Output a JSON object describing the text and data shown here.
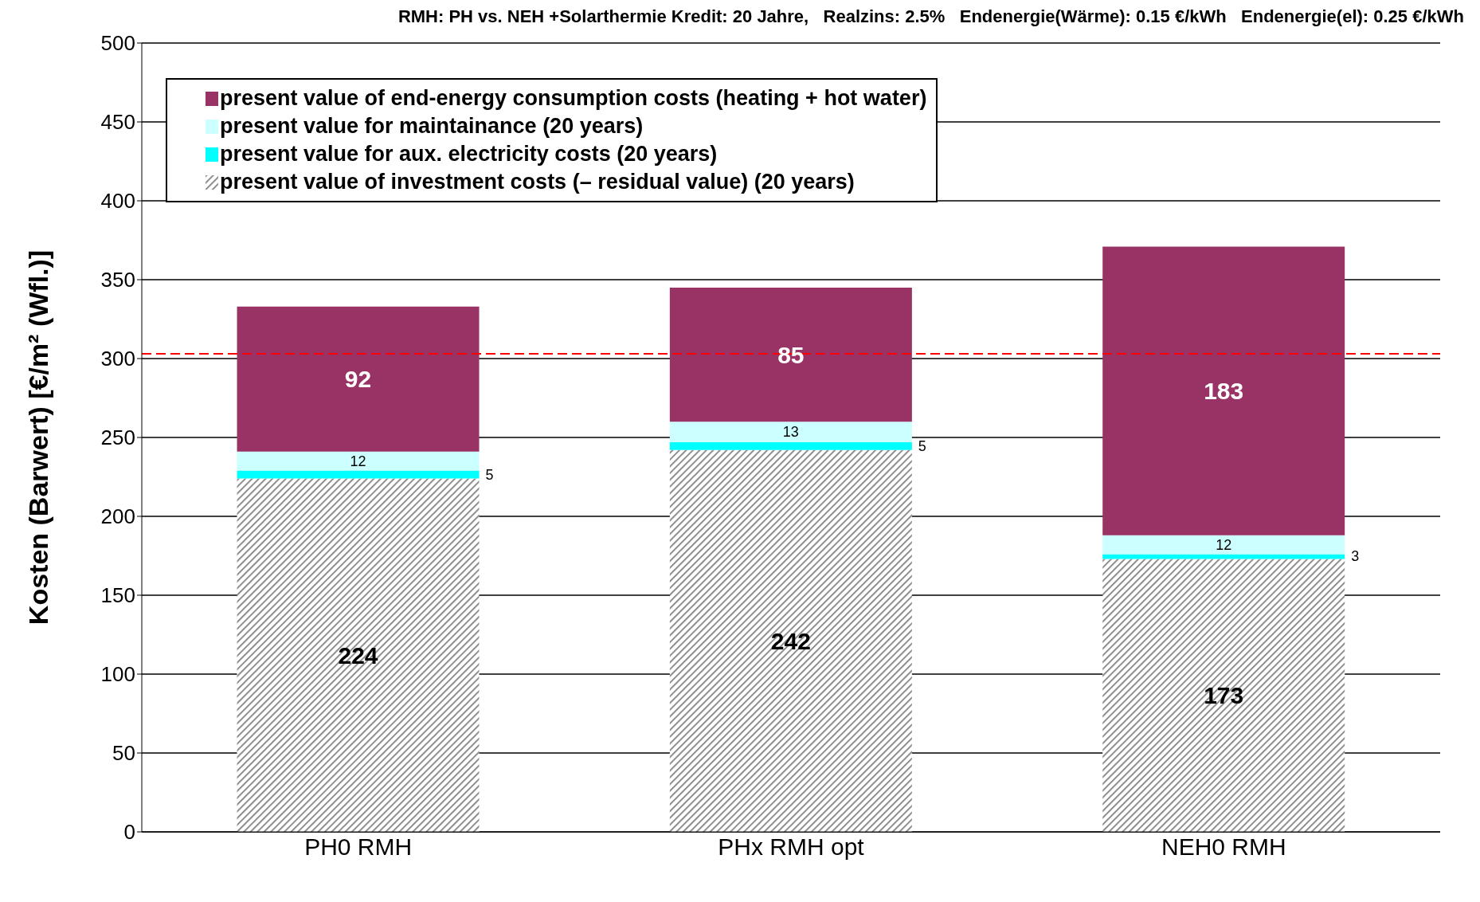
{
  "chart_data": {
    "type": "bar",
    "stacked": true,
    "title": "RMH: PH vs. NEH +Solarthermie Kredit: 20 Jahre,   Realzins: 2.5%   Endenergie(Wärme): 0.15 €/kWh   Endenergie(el): 0.25 €/kWh",
    "ylabel": "Kosten (Barwert)  [€/m² (Wfl.)]",
    "categories": [
      "PH0     RMH",
      "PHx     RMH opt",
      "NEH0   RMH"
    ],
    "series": [
      {
        "name": "present value of investment costs (– residual value)  (20 years)",
        "color": "#808080",
        "values": [
          224,
          242,
          173
        ]
      },
      {
        "name": "present value for aux. electricity costs (20 years)",
        "color": "#00ffff",
        "values": [
          5,
          5,
          3
        ]
      },
      {
        "name": "present value for maintainance (20 years)",
        "color": "#ccffff",
        "values": [
          12,
          13,
          12
        ]
      },
      {
        "name": "present value of end-energy consumption costs (heating + hot water)",
        "color": "#993366",
        "values": [
          92,
          85,
          183
        ]
      }
    ],
    "ylim": [
      0,
      500
    ],
    "yticks": [
      0,
      50,
      100,
      150,
      200,
      250,
      300,
      350,
      400,
      450,
      500
    ],
    "grid": "y",
    "legend": "top left",
    "data_labels": true,
    "ref_lines": [
      {
        "axis": "y",
        "value": 303,
        "color": "#ff0000",
        "line_style": "dashed"
      }
    ]
  }
}
